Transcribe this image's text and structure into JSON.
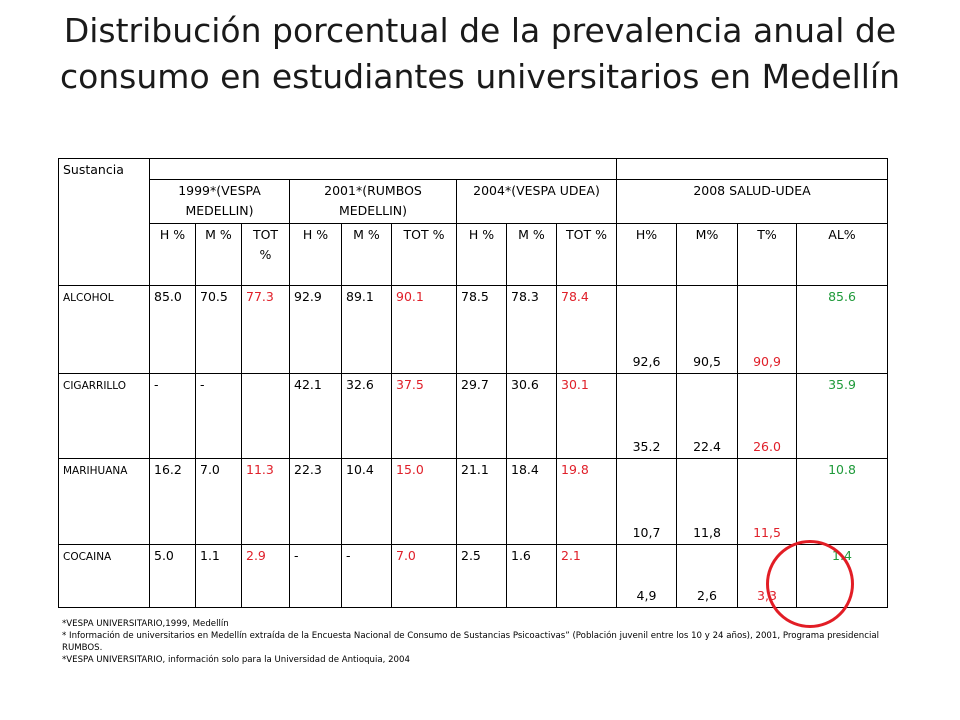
{
  "title": "Distribución porcentual de la prevalencia anual de consumo en estudiantes universitarios en Medellín",
  "table": {
    "corner_label": "Sustancia",
    "groups": [
      "1999*(VESPA MEDELLIN)",
      "2001*(RUMBOS MEDELLIN)",
      "2004*(VESPA UDEA)",
      "2008 SALUD-UDEA"
    ],
    "subheaders": [
      "H %",
      "M %",
      "TOT %",
      "H %",
      "M %",
      "TOT %",
      "H %",
      "M %",
      "TOT %",
      "H%",
      "M%",
      "T%",
      "AL%"
    ],
    "rows": [
      {
        "name": "ALCOHOL",
        "values": [
          "85.0",
          "70.5",
          "77.3",
          "92.9",
          "89.1",
          "90.1",
          "78.5",
          "78.3",
          "78.4",
          "92,6",
          "90,5",
          "90,9",
          "85.6"
        ]
      },
      {
        "name": "CIGARRILLO",
        "values": [
          "-",
          "-",
          "",
          "42.1",
          "32.6",
          "37.5",
          "29.7",
          "30.6",
          "30.1",
          "35.2",
          "22.4",
          "26.0",
          "35.9"
        ]
      },
      {
        "name": "MARIHUANA",
        "values": [
          "16.2",
          "7.0",
          "11.3",
          "22.3",
          "10.4",
          "15.0",
          "21.1",
          "18.4",
          "19.8",
          "10,7",
          "11,8",
          "11,5",
          "10.8"
        ]
      },
      {
        "name": "COCAINA",
        "values": [
          "5.0",
          "1.1",
          "2.9",
          "-",
          "-",
          "7.0",
          "2.5",
          "1.6",
          "2.1",
          "4,9",
          "2,6",
          "3,3",
          "1.4"
        ]
      }
    ]
  },
  "colors": {
    "highlight_red": "#e0202a",
    "highlight_green": "#1f9a3a",
    "circle": "#e21d25"
  },
  "notes": [
    "*VESPA UNIVERSITARIO,1999, Medellín",
    "* Información de universitarios en Medellín extraída de la Encuesta Nacional de Consumo de Sustancias Psicoactivas” (Población juvenil entre los 10 y 24 años), 2001, Programa presidencial RUMBOS.",
    "*VESPA UNIVERSITARIO, información solo para la Universidad de Antioquia, 2004"
  ]
}
